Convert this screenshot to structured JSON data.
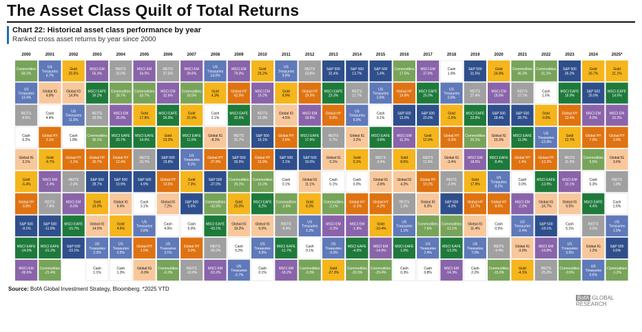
{
  "page": {
    "title": "The Asset Class Quilt of Total Returns",
    "chart_title": "Chart 22: Historical asset class performance by year",
    "chart_subtitle": "Ranked cross asset returns by year since 2000",
    "source_label": "Source:",
    "source_text": " BofA Global Investment Strategy, Bloomberg. *2025 YTD",
    "brand_mark": "BofA",
    "brand_text": "GLOBAL RESEARCH"
  },
  "colors": {
    "Commodities": "#78a45a",
    "US Treasuries": "#5f79b9",
    "Gold": "#f5b51c",
    "MSCI EM": "#8a64aa",
    "REITS": "#a0a0a0",
    "Cash": "#ffffff",
    "S&P 500": "#2f4f8c",
    "Global IG": "#f8c89c",
    "MSCI EAFE": "#1e7a3b",
    "Global HY": "#df7311"
  },
  "chart_data": {
    "type": "table",
    "title": "Chart 22: Historical asset class performance by year",
    "subtitle": "Ranked cross asset returns by year since 2000",
    "years": [
      "2000",
      "2001",
      "2002",
      "2003",
      "2004",
      "2005",
      "2006",
      "2007",
      "2008",
      "2009",
      "2010",
      "2011",
      "2012",
      "2013",
      "2014",
      "2015",
      "2016",
      "2017",
      "2018",
      "2019",
      "2020",
      "2021",
      "2022",
      "2023",
      "2024",
      "2025*"
    ],
    "columns": [
      [
        [
          "Commodities",
          "58.2%"
        ],
        [
          "US Treasuries",
          "13.4%"
        ],
        [
          "REITS",
          "8.5%"
        ],
        [
          "Cash",
          "6.2%"
        ],
        [
          "Global IG",
          "3.1%"
        ],
        [
          "Gold",
          "-5.4%"
        ],
        [
          "Global HY",
          "-5.8%"
        ],
        [
          "S&P 500",
          "-9.1%"
        ],
        [
          "MSCI EAFE",
          "-14.0%"
        ],
        [
          "MSCI EM",
          "-30.6%"
        ]
      ],
      [
        [
          "US Treasuries",
          "6.7%"
        ],
        [
          "Global IG",
          "4.8%"
        ],
        [
          "Cash",
          "4.4%"
        ],
        [
          "Global HY",
          "3.1%"
        ],
        [
          "Gold",
          "-0.7%"
        ],
        [
          "MSCI EM",
          "-2.4%"
        ],
        [
          "REITS",
          "-7.8%"
        ],
        [
          "S&P 500",
          "-11.9%"
        ],
        [
          "MSCI EAFE",
          "-21.2%"
        ],
        [
          "Commodities",
          "-21.4%"
        ]
      ],
      [
        [
          "Gold",
          "25.6%"
        ],
        [
          "Global IG",
          "14.9%"
        ],
        [
          "US Treasuries",
          "11.6%"
        ],
        [
          "Cash",
          "1.8%"
        ],
        [
          "Global HY",
          "-1.1%"
        ],
        [
          "REITS",
          "-2.4%"
        ],
        [
          "MSCI EM",
          "-6.0%"
        ],
        [
          "MSCI EAFE",
          "-15.7%"
        ],
        [
          "S&P 500",
          "-22.1%"
        ]
      ],
      [
        [
          "MSCI EM",
          "56.3%"
        ],
        [
          "MSCI EAFE",
          "39.2%"
        ],
        [
          "REITS",
          "33.5%"
        ],
        [
          "Commodities",
          "30.1%"
        ],
        [
          "Global HY",
          "30.7%"
        ],
        [
          "S&P 500",
          "28.7%"
        ],
        [
          "Gold",
          "19.9%"
        ],
        [
          "Global IG",
          "14.5%"
        ],
        [
          "US Treasuries",
          "2.3%"
        ],
        [
          "Cash",
          "1.1%"
        ]
      ],
      [
        [
          "REITS",
          "32.0%"
        ],
        [
          "Commodities",
          "28.7%"
        ],
        [
          "MSCI EM",
          "26.0%"
        ],
        [
          "MSCI EAFE",
          "20.7%"
        ],
        [
          "Global HY",
          "12.4%"
        ],
        [
          "S&P 500",
          "10.9%"
        ],
        [
          "Global IG",
          "9.4%"
        ],
        [
          "Gold",
          "4.6%"
        ],
        [
          "US Treasuries",
          "3.5%"
        ],
        [
          "Cash",
          "1.3%"
        ]
      ],
      [
        [
          "MSCI EM",
          "34.5%"
        ],
        [
          "Commodities",
          "33.7%"
        ],
        [
          "Gold",
          "17.8%"
        ],
        [
          "MSCI EAFE",
          "14.0%"
        ],
        [
          "REITS",
          "10.7%"
        ],
        [
          "S&P 500",
          "4.9%"
        ],
        [
          "Cash",
          "3.1%"
        ],
        [
          "US Treasuries",
          "2.8%"
        ],
        [
          "Global HY",
          "1.5%"
        ],
        [
          "Global IG",
          "-3.0%"
        ]
      ],
      [
        [
          "REITS",
          "37.5%"
        ],
        [
          "MSCI EM",
          "32.6%"
        ],
        [
          "MSCI EAFE",
          "26.9%"
        ],
        [
          "Gold",
          "23.2%"
        ],
        [
          "S&P 500",
          "15.8%"
        ],
        [
          "Global HY",
          "13.5%"
        ],
        [
          "Global IG",
          "7.2%"
        ],
        [
          "Cash",
          "4.9%"
        ],
        [
          "US Treasuries",
          "3.1%"
        ],
        [
          "Commodities",
          "-0.2%"
        ]
      ],
      [
        [
          "MSCI EM",
          "39.8%"
        ],
        [
          "Commodities",
          "33.0%"
        ],
        [
          "Gold",
          "31.9%"
        ],
        [
          "MSCI EAFE",
          "11.6%"
        ],
        [
          "US Treasuries",
          "9.1%"
        ],
        [
          "Gold",
          "7.3%"
        ],
        [
          "S&P 500",
          "5.5%"
        ],
        [
          "Cash",
          "5.0%"
        ],
        [
          "Global HY",
          "3.0%"
        ],
        [
          "REITS",
          "-10.0%"
        ]
      ],
      [
        [
          "US Treasuries",
          "14.0%"
        ],
        [
          "Gold",
          "4.3%"
        ],
        [
          "Cash",
          "2.1%"
        ],
        [
          "Global IG",
          "-8.3%"
        ],
        [
          "Global HY",
          "-27.8%"
        ],
        [
          "S&P 500",
          "-37.0%"
        ],
        [
          "Commodities",
          "-42.6%"
        ],
        [
          "MSCI EAFE",
          "-43.1%"
        ],
        [
          "REITS",
          "-50.2%"
        ],
        [
          "MSCI EM",
          "-53.2%"
        ]
      ],
      [
        [
          "MSCI EM",
          "79.0%"
        ],
        [
          "Global HY",
          "62.0%"
        ],
        [
          "MSCI EAFE",
          "32.5%"
        ],
        [
          "REITS",
          "31.7%"
        ],
        [
          "S&P 500",
          "26.5%"
        ],
        [
          "Commodities",
          "26.1%"
        ],
        [
          "Gold",
          "25.0%"
        ],
        [
          "Global IG",
          "19.2%"
        ],
        [
          "Cash",
          "0.2%"
        ],
        [
          "US Treasuries",
          "-3.7%"
        ]
      ],
      [
        [
          "Gold",
          "29.2%"
        ],
        [
          "MSCI EM",
          "19.2%"
        ],
        [
          "REITS",
          "15.9%"
        ],
        [
          "S&P 500",
          "15.1%"
        ],
        [
          "Global HY",
          "13.9%"
        ],
        [
          "Commodities",
          "13.3%"
        ],
        [
          "MSCI EAFE",
          "8.2%"
        ],
        [
          "Global IG",
          "6.0%"
        ],
        [
          "US Treasuries",
          "5.9%"
        ],
        [
          "Cash",
          "0.1%"
        ]
      ],
      [
        [
          "US Treasuries",
          "9.8%"
        ],
        [
          "Gold",
          "8.9%"
        ],
        [
          "Global IG",
          "4.5%"
        ],
        [
          "Global HY",
          "2.6%"
        ],
        [
          "S&P 500",
          "2.1%"
        ],
        [
          "Cash",
          "0.1%"
        ],
        [
          "Commodities",
          "-2.6%"
        ],
        [
          "REITS",
          "-9.4%"
        ],
        [
          "MSCI EAFE",
          "-11.7%"
        ],
        [
          "MSCI EM",
          "-18.2%"
        ]
      ],
      [
        [
          "REITS",
          "23.8%"
        ],
        [
          "Global HY",
          "19.3%"
        ],
        [
          "MSCI EM",
          "18.8%"
        ],
        [
          "MSCI EAFE",
          "17.9%"
        ],
        [
          "S&P 500",
          "16.0%"
        ],
        [
          "Global IG",
          "11.1%"
        ],
        [
          "Gold",
          "8.3%"
        ],
        [
          "US Treasuries",
          "2.2%"
        ],
        [
          "Cash",
          "0.1%"
        ],
        [
          "Commodities",
          "-0.3%"
        ]
      ],
      [
        [
          "S&P 500",
          "32.4%"
        ],
        [
          "MSCI EAFE",
          "23.3%"
        ],
        [
          "Global HY",
          "8.0%"
        ],
        [
          "REITS",
          "0.7%"
        ],
        [
          "Global IG",
          "0.1%"
        ],
        [
          "Cash",
          "0.1%"
        ],
        [
          "Commodities",
          "-2.1%"
        ],
        [
          "MSCI EM",
          "-2.3%"
        ],
        [
          "US Treasuries",
          "-3.3%"
        ],
        [
          "Gold",
          "-27.3%"
        ]
      ],
      [
        [
          "S&P 500",
          "13.7%"
        ],
        [
          "REITS",
          "11.7%"
        ],
        [
          "US Treasuries",
          "6.0%"
        ],
        [
          "Global IG",
          "3.2%"
        ],
        [
          "Gold",
          "0.1%"
        ],
        [
          "Cash",
          "0.0%"
        ],
        [
          "Global HY",
          "-0.1%"
        ],
        [
          "MSCI EM",
          "-1.8%"
        ],
        [
          "MSCI EAFE",
          "-4.5%"
        ],
        [
          "Commodities",
          "-29.3%"
        ]
      ],
      [
        [
          "S&P 500",
          "1.4%"
        ],
        [
          "US Treasuries",
          "0.8%"
        ],
        [
          "Cash",
          "0.1%"
        ],
        [
          "MSCI EAFE",
          "-0.8%"
        ],
        [
          "REITS",
          "-3.4%"
        ],
        [
          "Global IG",
          "-3.8%"
        ],
        [
          "Global HY",
          "-4.2%"
        ],
        [
          "Gold",
          "-10.4%"
        ],
        [
          "MSCI EM",
          "-14.9%"
        ],
        [
          "Commodities",
          "-29.4%"
        ]
      ],
      [
        [
          "Commodities",
          "17.5%"
        ],
        [
          "Global HY",
          "14.8%"
        ],
        [
          "S&P 500",
          "12.0%"
        ],
        [
          "MSCI EM",
          "11.2%"
        ],
        [
          "Gold",
          "8.6%"
        ],
        [
          "Global IG",
          "4.3%"
        ],
        [
          "REITS",
          "1.3%"
        ],
        [
          "US Treasuries",
          "1.1%"
        ],
        [
          "MSCI EAFE",
          "1.0%"
        ],
        [
          "Cash",
          "0.3%"
        ]
      ],
      [
        [
          "MSCI EM",
          "37.8%"
        ],
        [
          "MSCI EAFE",
          "25.0%"
        ],
        [
          "S&P 500",
          "22.0%"
        ],
        [
          "Gold",
          "12.9%"
        ],
        [
          "REITS",
          "11.5%"
        ],
        [
          "Global HY",
          "10.2%"
        ],
        [
          "Global IG",
          "9.3%"
        ],
        [
          "Commodities",
          "7.6%"
        ],
        [
          "US Treasuries",
          "2.4%"
        ],
        [
          "Cash",
          "0.8%"
        ]
      ],
      [
        [
          "Cash",
          "1.8%"
        ],
        [
          "US Treasuries",
          "0.8%"
        ],
        [
          "Gold",
          "-1.9%"
        ],
        [
          "Global HY",
          "-3.3%"
        ],
        [
          "Global IG",
          "-3.4%"
        ],
        [
          "REITS",
          "-3.9%"
        ],
        [
          "S&P 500",
          "-4.3%"
        ],
        [
          "Commodities",
          "-13.1%"
        ],
        [
          "MSCI EAFE",
          "-13.2%"
        ],
        [
          "MSCI EM",
          "-14.3%"
        ]
      ],
      [
        [
          "S&P 500",
          "31.5%"
        ],
        [
          "REITS",
          "27.4%"
        ],
        [
          "MSCI EAFE",
          "22.8%"
        ],
        [
          "Commodities",
          "20.1%"
        ],
        [
          "MSCI EM",
          "18.6%"
        ],
        [
          "Gold",
          "17.9%"
        ],
        [
          "Global HY",
          "13.7%"
        ],
        [
          "Global IG",
          "11.4%"
        ],
        [
          "US Treasuries",
          "7.0%"
        ],
        [
          "Cash",
          "2.2%"
        ]
      ],
      [
        [
          "Gold",
          "24.8%"
        ],
        [
          "MSCI EM",
          "18.8%"
        ],
        [
          "S&P 500",
          "18.4%"
        ],
        [
          "Global IG",
          "10.3%"
        ],
        [
          "MSCI EAFE",
          "8.4%"
        ],
        [
          "US Treasuries",
          "8.2%"
        ],
        [
          "Global HY",
          "8.0%"
        ],
        [
          "Cash",
          "0.5%"
        ],
        [
          "REITS",
          "-4.4%"
        ],
        [
          "Commodities",
          "-15.0%"
        ]
      ],
      [
        [
          "Commodities",
          "46.3%"
        ],
        [
          "REITS",
          "37.1%"
        ],
        [
          "S&P 500",
          "28.7%"
        ],
        [
          "MSCI EAFE",
          "11.9%"
        ],
        [
          "Global HY",
          "1.4%"
        ],
        [
          "Cash",
          "0.0%"
        ],
        [
          "MSCI EM",
          "-2.3%"
        ],
        [
          "US Treasuries",
          "-2.4%"
        ],
        [
          "Global IG",
          "-3.0%"
        ],
        [
          "Gold",
          "-4.1%"
        ]
      ],
      [
        [
          "Commodities",
          "31.1%"
        ],
        [
          "Cash",
          "1.5%"
        ],
        [
          "Gold",
          "-0.8%"
        ],
        [
          "US Treasuries",
          "-12.9%"
        ],
        [
          "Global HY",
          "-13.2%"
        ],
        [
          "MSCI EAFE",
          "-13.9%"
        ],
        [
          "Global IG",
          "-16.7%"
        ],
        [
          "S&P 500",
          "-18.1%"
        ],
        [
          "MSCI EM",
          "-19.8%"
        ],
        [
          "REITS",
          "-25.2%"
        ]
      ],
      [
        [
          "S&P 500",
          "26.3%"
        ],
        [
          "MSCI EAFE",
          "18.9%"
        ],
        [
          "Global HY",
          "13.4%"
        ],
        [
          "Gold",
          "12.7%"
        ],
        [
          "REITS",
          "11.3%"
        ],
        [
          "MSCI EM",
          "10.1%"
        ],
        [
          "Global IG",
          "9.5%"
        ],
        [
          "Cash",
          "5.1%"
        ],
        [
          "US Treasuries",
          "3.9%"
        ],
        [
          "Commodities",
          "-3.5%"
        ]
      ],
      [
        [
          "Gold",
          "26.7%"
        ],
        [
          "S&P 500",
          "25.0%"
        ],
        [
          "MSCI EM",
          "8.0%"
        ],
        [
          "Global HY",
          "7.5%"
        ],
        [
          "Commodities",
          "5.5%"
        ],
        [
          "Cash",
          "5.3%"
        ],
        [
          "MSCI EAFE",
          "4.4%"
        ],
        [
          "REITS",
          "3.2%"
        ],
        [
          "Global IG",
          "1.2%"
        ],
        [
          "US Treasuries",
          "0.5%"
        ]
      ],
      [
        [
          "Gold",
          "21.1%"
        ],
        [
          "MSCI EAFE",
          "14.5%"
        ],
        [
          "MSCI EM",
          "10.2%"
        ],
        [
          "Global HY",
          "3.9%"
        ],
        [
          "Global IG",
          "3.6%"
        ],
        [
          "REITS",
          "1.8%"
        ],
        [
          "Cash",
          "1.6%"
        ],
        [
          "US Treasuries",
          "1.5%"
        ],
        [
          "S&P 500",
          "0.6%"
        ],
        [
          "Commodities",
          "-1.2%"
        ]
      ]
    ]
  }
}
